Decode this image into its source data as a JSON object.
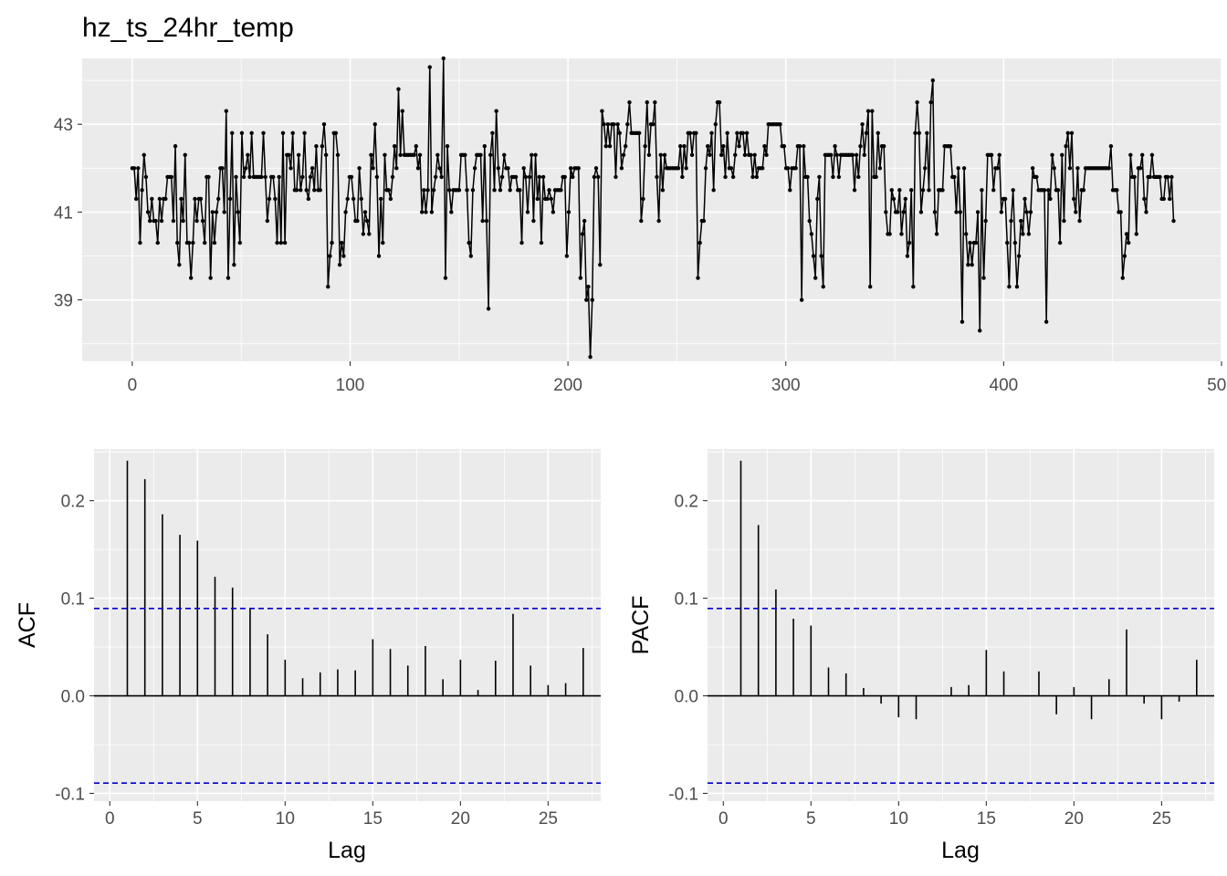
{
  "chart_data": [
    {
      "type": "line",
      "title": "hz_ts_24hr_temp",
      "xlabel": "",
      "ylabel": "",
      "xlim": [
        -23,
        500
      ],
      "ylim": [
        37.6,
        44.5
      ],
      "xticks": [
        "0",
        "100",
        "200",
        "300",
        "400",
        "500"
      ],
      "yticks": [
        "39",
        "41",
        "43"
      ],
      "xtick_values": [
        0,
        100,
        200,
        300,
        400,
        500
      ],
      "ytick_values": [
        39,
        41,
        43
      ],
      "x_start": 0,
      "x_end": 478,
      "points_shown": true,
      "grid": true,
      "line_color": "#000000",
      "values": [
        42.0,
        42.0,
        41.3,
        42.0,
        40.3,
        41.5,
        42.3,
        41.8,
        41.0,
        40.8,
        41.3,
        40.8,
        40.8,
        40.3,
        41.3,
        40.8,
        41.3,
        41.3,
        41.8,
        41.8,
        41.8,
        40.8,
        42.5,
        40.3,
        39.8,
        41.3,
        40.8,
        42.3,
        40.3,
        40.3,
        39.5,
        40.3,
        41.3,
        40.8,
        41.3,
        41.3,
        40.8,
        40.3,
        41.8,
        41.8,
        39.5,
        41.0,
        40.3,
        41.0,
        41.3,
        42.0,
        42.0,
        41.0,
        43.3,
        39.5,
        41.3,
        42.8,
        39.8,
        41.8,
        41.0,
        40.3,
        42.8,
        41.8,
        42.0,
        42.3,
        41.8,
        42.8,
        41.8,
        41.8,
        41.8,
        41.8,
        41.8,
        42.8,
        41.8,
        40.8,
        41.3,
        41.8,
        41.8,
        41.3,
        40.3,
        41.8,
        40.3,
        42.8,
        40.3,
        42.3,
        42.3,
        42.0,
        42.8,
        41.5,
        41.5,
        42.3,
        41.5,
        41.8,
        42.8,
        41.5,
        41.3,
        41.8,
        42.0,
        41.5,
        42.5,
        41.5,
        41.5,
        42.5,
        43.0,
        42.3,
        39.3,
        40.0,
        40.3,
        42.8,
        42.8,
        42.3,
        39.8,
        40.3,
        40.0,
        41.0,
        41.3,
        41.8,
        41.8,
        41.3,
        40.8,
        40.8,
        42.0,
        41.3,
        40.5,
        41.0,
        40.8,
        40.5,
        42.3,
        42.0,
        43.0,
        41.8,
        40.0,
        41.3,
        40.3,
        42.3,
        41.5,
        41.5,
        41.3,
        41.8,
        42.5,
        42.0,
        43.8,
        42.3,
        43.3,
        42.3,
        42.3,
        42.3,
        42.3,
        42.3,
        42.3,
        42.5,
        42.0,
        42.3,
        41.0,
        41.5,
        41.0,
        41.5,
        44.3,
        41.0,
        41.5,
        41.8,
        42.3,
        42.0,
        41.8,
        44.5,
        39.5,
        42.5,
        41.5,
        41.0,
        41.5,
        41.5,
        41.5,
        41.5,
        42.3,
        42.3,
        42.3,
        41.5,
        40.3,
        40.0,
        41.5,
        42.0,
        42.3,
        42.3,
        42.3,
        40.8,
        42.5,
        40.8,
        38.8,
        42.3,
        42.8,
        41.5,
        43.3,
        42.0,
        41.5,
        41.8,
        42.3,
        42.0,
        42.0,
        41.5,
        41.8,
        41.8,
        41.8,
        41.5,
        41.5,
        40.3,
        42.0,
        41.8,
        41.0,
        41.8,
        42.3,
        40.8,
        42.3,
        41.3,
        41.8,
        40.3,
        41.8,
        41.3,
        41.3,
        41.5,
        41.3,
        41.0,
        41.5,
        41.5,
        41.5,
        41.5,
        41.8,
        41.8,
        40.0,
        41.0,
        42.0,
        41.8,
        42.0,
        42.0,
        42.0,
        39.5,
        40.5,
        40.8,
        39.0,
        39.3,
        37.7,
        39.0,
        41.8,
        42.0,
        41.8,
        39.8,
        43.3,
        43.0,
        42.5,
        43.0,
        42.5,
        43.0,
        43.0,
        41.8,
        43.0,
        42.8,
        42.0,
        42.3,
        42.5,
        43.0,
        43.5,
        42.8,
        42.8,
        42.8,
        42.8,
        42.8,
        40.8,
        41.3,
        42.5,
        43.5,
        42.3,
        43.0,
        43.0,
        43.5,
        41.8,
        40.8,
        42.3,
        41.5,
        42.3,
        42.0,
        42.0,
        42.0,
        42.0,
        42.0,
        42.0,
        42.0,
        42.5,
        41.8,
        42.5,
        42.0,
        42.8,
        42.8,
        42.3,
        42.8,
        42.8,
        39.5,
        40.3,
        40.8,
        40.8,
        42.0,
        42.5,
        42.3,
        42.8,
        41.5,
        43.0,
        43.5,
        43.5,
        42.3,
        42.5,
        41.8,
        42.8,
        42.0,
        42.0,
        41.8,
        42.3,
        42.8,
        42.5,
        42.8,
        42.8,
        42.3,
        42.8,
        42.3,
        42.3,
        41.8,
        42.3,
        41.8,
        42.0,
        42.0,
        42.0,
        42.5,
        42.3,
        43.0,
        43.0,
        43.0,
        43.0,
        43.0,
        43.0,
        43.0,
        42.5,
        42.5,
        42.0,
        42.0,
        41.5,
        42.0,
        42.0,
        42.0,
        42.5,
        42.5,
        39.0,
        42.5,
        41.8,
        41.8,
        40.8,
        40.5,
        40.0,
        39.5,
        41.3,
        41.8,
        40.0,
        39.3,
        42.3,
        42.3,
        42.3,
        42.3,
        41.8,
        42.5,
        42.3,
        41.8,
        42.3,
        42.3,
        42.3,
        42.3,
        42.3,
        42.3,
        42.3,
        41.5,
        42.3,
        41.8,
        42.5,
        43.0,
        42.3,
        42.8,
        43.3,
        39.3,
        43.3,
        41.8,
        41.8,
        42.8,
        42.0,
        42.5,
        42.5,
        41.0,
        40.5,
        40.5,
        41.5,
        41.3,
        41.0,
        41.0,
        41.5,
        40.5,
        41.0,
        41.3,
        40.0,
        40.3,
        41.5,
        39.3,
        42.8,
        43.5,
        42.8,
        41.0,
        41.5,
        42.0,
        42.8,
        41.5,
        43.5,
        44.0,
        41.0,
        40.5,
        41.5,
        41.5,
        41.5,
        42.5,
        42.5,
        42.5,
        42.5,
        41.8,
        41.8,
        41.0,
        42.0,
        41.0,
        38.5,
        42.0,
        40.5,
        39.8,
        40.3,
        39.8,
        40.3,
        40.3,
        41.0,
        38.3,
        41.5,
        39.5,
        40.8,
        42.3,
        42.3,
        42.3,
        41.5,
        42.0,
        42.0,
        42.3,
        41.0,
        41.3,
        41.3,
        40.3,
        39.3,
        40.8,
        41.5,
        40.3,
        39.3,
        40.0,
        40.8,
        40.5,
        41.3,
        41.0,
        40.5,
        41.0,
        42.0,
        41.8,
        41.8,
        41.5,
        41.5,
        41.5,
        41.5,
        38.5,
        41.5,
        41.3,
        42.3,
        42.0,
        41.5,
        41.5,
        40.3,
        42.3,
        40.8,
        42.5,
        42.8,
        42.0,
        42.8,
        41.3,
        41.0,
        42.0,
        40.8,
        41.5,
        41.5,
        42.0,
        42.0,
        42.0,
        42.0,
        42.0,
        42.0,
        42.0,
        42.0,
        42.0,
        42.0,
        42.0,
        42.0,
        42.0,
        42.5,
        41.5,
        41.5,
        41.5,
        41.0,
        41.0,
        39.5,
        40.0,
        40.5,
        40.3,
        42.3,
        41.8,
        41.8,
        40.5,
        42.0,
        42.0,
        42.3,
        41.3,
        41.0,
        41.8,
        41.8,
        42.3,
        41.8,
        41.8,
        41.8,
        41.8,
        41.3,
        41.3,
        41.8,
        41.8,
        41.3,
        41.8,
        40.8
      ]
    },
    {
      "type": "bar",
      "xlabel": "Lag",
      "ylabel": "ACF",
      "xlim": [
        -0.9,
        28.0
      ],
      "ylim": [
        -0.108,
        0.253
      ],
      "xticks": [
        "0",
        "5",
        "10",
        "15",
        "20",
        "25"
      ],
      "yticks": [
        "-0.1",
        "0.0",
        "0.1",
        "0.2"
      ],
      "xtick_values": [
        0,
        5,
        10,
        15,
        20,
        25
      ],
      "ytick_values": [
        -0.1,
        0.0,
        0.1,
        0.2
      ],
      "lags": [
        1,
        2,
        3,
        4,
        5,
        6,
        7,
        8,
        9,
        10,
        11,
        12,
        13,
        14,
        15,
        16,
        17,
        18,
        19,
        20,
        21,
        22,
        23,
        24,
        25,
        26,
        27
      ],
      "values": [
        0.241,
        0.222,
        0.186,
        0.165,
        0.159,
        0.122,
        0.111,
        0.089,
        0.063,
        0.037,
        0.018,
        0.024,
        0.027,
        0.026,
        0.058,
        0.048,
        0.031,
        0.051,
        0.017,
        0.037,
        0.006,
        0.036,
        0.084,
        0.031,
        0.011,
        0.013,
        0.049
      ],
      "confidence_bound": 0.0895,
      "bound_color": "#0000cc",
      "grid": true
    },
    {
      "type": "bar",
      "xlabel": "Lag",
      "ylabel": "PACF",
      "xlim": [
        -0.9,
        28.0
      ],
      "ylim": [
        -0.108,
        0.253
      ],
      "xticks": [
        "0",
        "5",
        "10",
        "15",
        "20",
        "25"
      ],
      "yticks": [
        "-0.1",
        "0.0",
        "0.1",
        "0.2"
      ],
      "xtick_values": [
        0,
        5,
        10,
        15,
        20,
        25
      ],
      "ytick_values": [
        -0.1,
        0.0,
        0.1,
        0.2
      ],
      "lags": [
        1,
        2,
        3,
        4,
        5,
        6,
        7,
        8,
        9,
        10,
        11,
        12,
        13,
        14,
        15,
        16,
        17,
        18,
        19,
        20,
        21,
        22,
        23,
        24,
        25,
        26,
        27
      ],
      "values": [
        0.241,
        0.175,
        0.109,
        0.079,
        0.072,
        0.029,
        0.023,
        0.008,
        -0.008,
        -0.022,
        -0.024,
        0.0,
        0.009,
        0.011,
        0.047,
        0.025,
        0.0,
        0.025,
        -0.019,
        0.009,
        -0.024,
        0.017,
        0.068,
        -0.008,
        -0.024,
        -0.006,
        0.037
      ],
      "confidence_bound": 0.0895,
      "bound_color": "#0000cc",
      "grid": true
    }
  ]
}
